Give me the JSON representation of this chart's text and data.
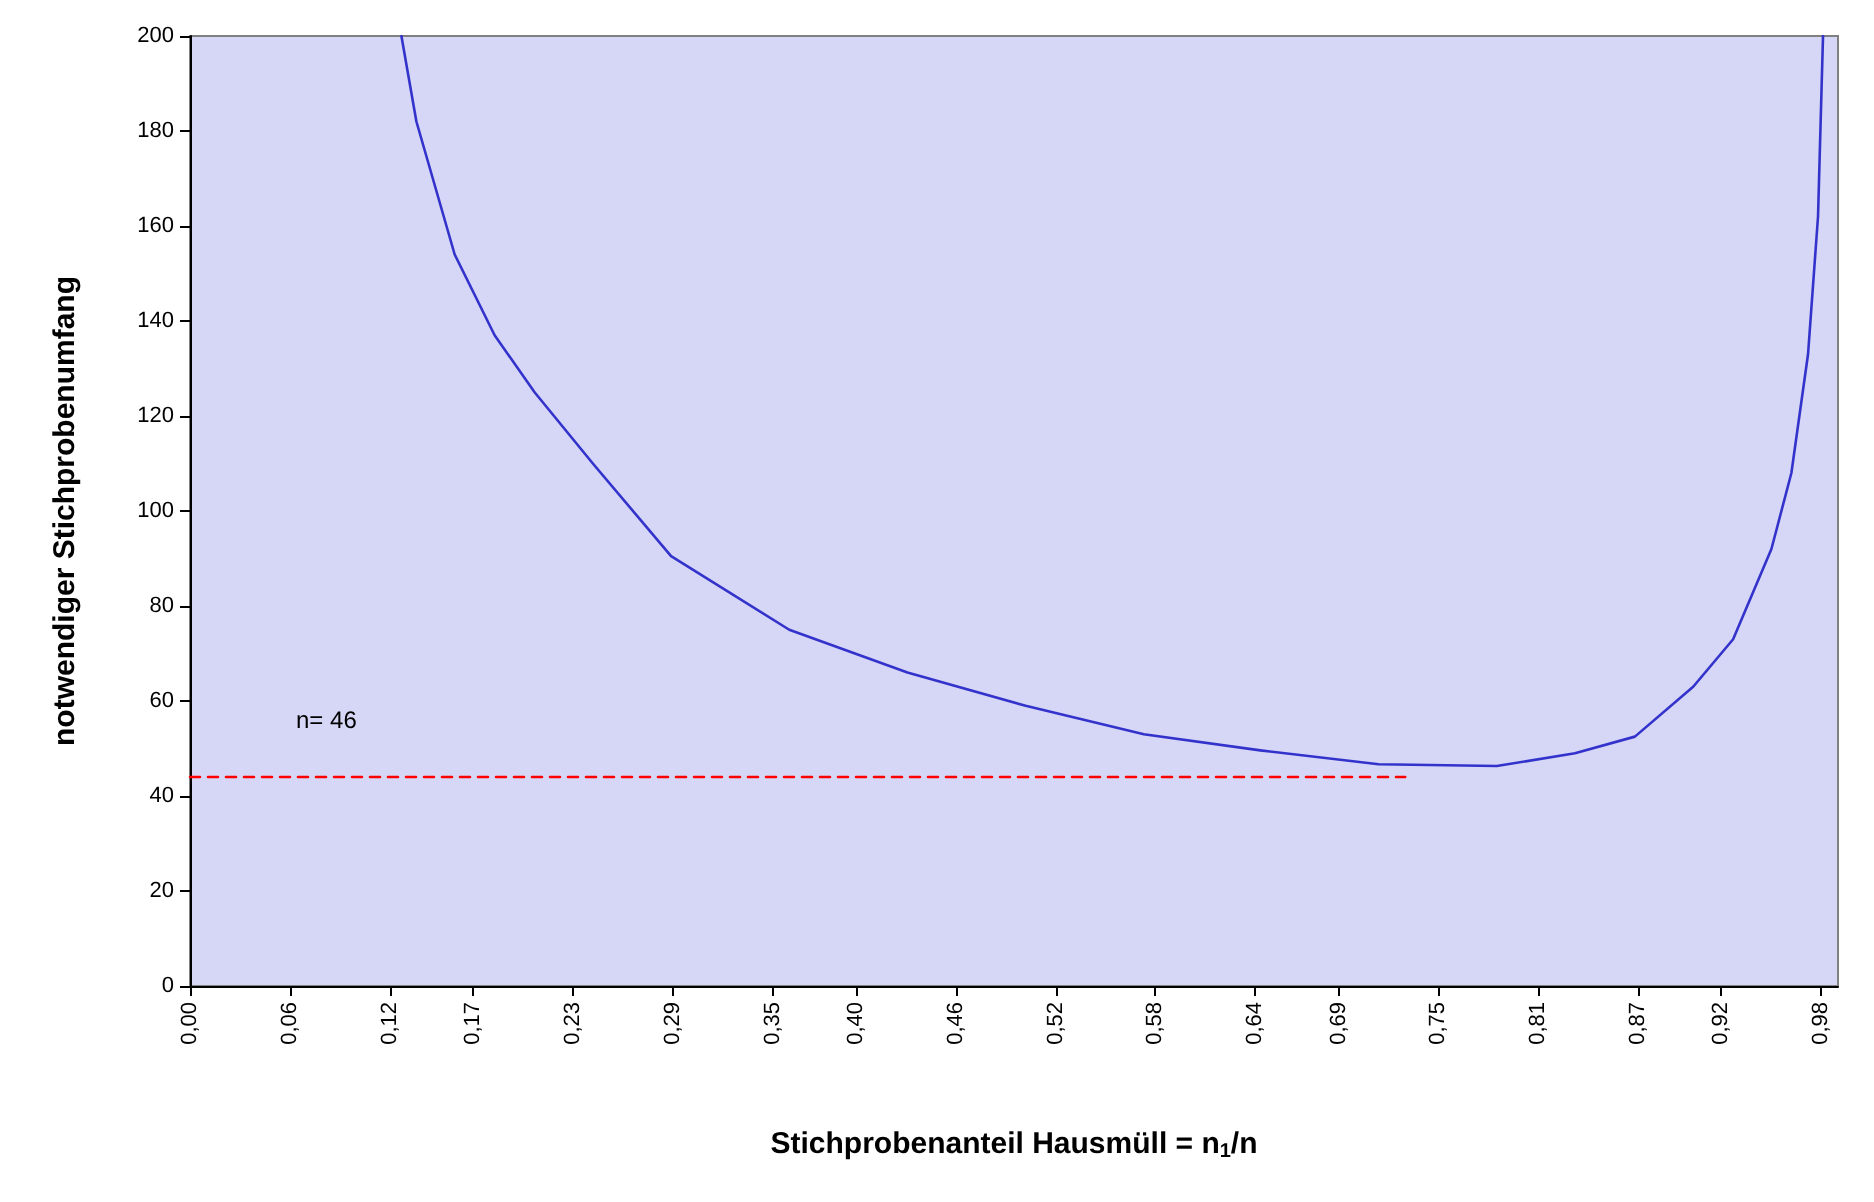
{
  "chart_data": {
    "type": "line",
    "xlabel": "Stichprobenanteil Hausmüll = n$_{1}$/n",
    "ylabel": "notwendiger Stichprobenumfang",
    "xlim": [
      0,
      0.99
    ],
    "ylim": [
      0,
      200
    ],
    "xticks": [
      {
        "value": 0,
        "label": "0,00"
      },
      {
        "value": 0.06,
        "label": "0,06"
      },
      {
        "value": 0.12,
        "label": "0,12"
      },
      {
        "value": 0.17,
        "label": "0,17"
      },
      {
        "value": 0.23,
        "label": "0,23"
      },
      {
        "value": 0.29,
        "label": "0,29"
      },
      {
        "value": 0.35,
        "label": "0,35"
      },
      {
        "value": 0.4,
        "label": "0,40"
      },
      {
        "value": 0.46,
        "label": "0,46"
      },
      {
        "value": 0.52,
        "label": "0,52"
      },
      {
        "value": 0.58,
        "label": "0,58"
      },
      {
        "value": 0.64,
        "label": "0,64"
      },
      {
        "value": 0.69,
        "label": "0,69"
      },
      {
        "value": 0.75,
        "label": "0,75"
      },
      {
        "value": 0.81,
        "label": "0,81"
      },
      {
        "value": 0.87,
        "label": "0,87"
      },
      {
        "value": 0.92,
        "label": "0,92"
      },
      {
        "value": 0.98,
        "label": "0,98"
      }
    ],
    "yticks": [
      0,
      20,
      40,
      60,
      80,
      100,
      120,
      140,
      160,
      180,
      200
    ],
    "series": [
      {
        "color": "#3333cc",
        "line_style": "solid",
        "x": [
          0.127,
          0.136,
          0.159,
          0.183,
          0.207,
          0.242,
          0.289,
          0.36,
          0.431,
          0.502,
          0.573,
          0.643,
          0.714,
          0.785,
          0.832,
          0.868,
          0.903,
          0.927,
          0.95,
          0.962,
          0.972,
          0.978,
          0.981
        ],
        "values": [
          200,
          182,
          154,
          137,
          125,
          110,
          90.5,
          75,
          66,
          59,
          53,
          49.6,
          46.7,
          46.3,
          49,
          52.5,
          63,
          73,
          92,
          108,
          133,
          162,
          200
        ]
      },
      {
        "color": "#ff0000",
        "line_style": "dashed",
        "x": [
          0,
          0.73
        ],
        "values": [
          44,
          44
        ]
      }
    ],
    "annotations": [
      "n= 46"
    ],
    "grid": false,
    "marker": "none"
  }
}
